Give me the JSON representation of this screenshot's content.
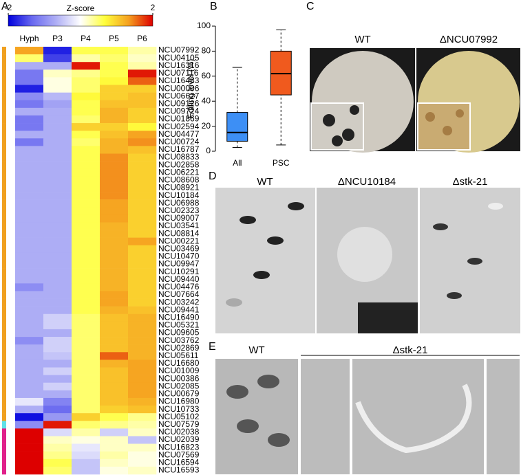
{
  "chart_data": [
    {
      "type": "heatmap",
      "colorbar_title": "Z-score",
      "zlim": [
        -2,
        2
      ],
      "colorbar_ticks": [
        -2,
        2
      ],
      "colormap": [
        "#0000dd",
        "#6a6af0",
        "#b0b0f5",
        "#ffffff",
        "#ffff3c",
        "#f5a020",
        "#dd0000"
      ],
      "categories": [
        "Hyph",
        "P3",
        "P4",
        "P5",
        "P6"
      ],
      "rows": [
        "NCU07992",
        "NCU04105",
        "NCU16316",
        "NCU07116",
        "NCU16483",
        "NCU00006",
        "NCU06627",
        "NCU09126",
        "NCU09724",
        "NCU01869",
        "NCU02594",
        "NCU04477",
        "NCU00724",
        "NCU16787",
        "NCU08833",
        "NCU02858",
        "NCU06221",
        "NCU08608",
        "NCU08921",
        "NCU10184",
        "NCU06988",
        "NCU02323",
        "NCU09007",
        "NCU03541",
        "NCU08814",
        "NCU00221",
        "NCU03469",
        "NCU10470",
        "NCU09947",
        "NCU10291",
        "NCU09440",
        "NCU04476",
        "NCU07664",
        "NCU03242",
        "NCU09441",
        "NCU16490",
        "NCU05321",
        "NCU09605",
        "NCU03762",
        "NCU02869",
        "NCU05611",
        "NCU16680",
        "NCU01009",
        "NCU00386",
        "NCU02085",
        "NCU00679",
        "NCU16980",
        "NCU10733",
        "NCU05102",
        "NCU07579",
        "NCU02038",
        "NCU02039",
        "NCU16823",
        "NCU07569",
        "NCU16594",
        "NCU16593"
      ],
      "highlighted_rows": [
        "NCU07992",
        "NCU10184",
        "NCU03242"
      ],
      "row_group_colors": [
        "#f0a020",
        "#f0a020",
        "#f0a020",
        "#f0a020",
        "#f0a020",
        "#f0a020",
        "#f0a020",
        "#f0a020",
        "#f0a020",
        "#f0a020",
        "#f0a020",
        "#f0a020",
        "#f0a020",
        "#f0a020",
        "#f0a020",
        "#f0a020",
        "#f0a020",
        "#f0a020",
        "#f0a020",
        "#f0a020",
        "#f0a020",
        "#f0a020",
        "#f0a020",
        "#f0a020",
        "#f0a020",
        "#f0a020",
        "#f0a020",
        "#f0a020",
        "#f0a020",
        "#f0a020",
        "#f0a020",
        "#f0a020",
        "#f0a020",
        "#f0a020",
        "#f0a020",
        "#f0a020",
        "#f0a020",
        "#f0a020",
        "#f0a020",
        "#f0a020",
        "#f0a020",
        "#f0a020",
        "#f0a020",
        "#f0a020",
        "#f0a020",
        "#f0a020",
        "#f0a020",
        "#f0a020",
        "#f0a020",
        "#60e0e8",
        "#e0208a",
        "#e0208a",
        "#e0208a",
        "#e0208a",
        "#e0208a",
        "#e0208a"
      ],
      "values": [
        [
          1.3,
          -1.8,
          0.6,
          0.6,
          0.3
        ],
        [
          0.5,
          -1.6,
          0.3,
          0.5,
          0.2
        ],
        [
          -0.7,
          -0.7,
          1.9,
          0.6,
          0.3
        ],
        [
          -1.2,
          0.2,
          0.4,
          0.6,
          1.9
        ],
        [
          -1.2,
          0.1,
          0.5,
          0.7,
          1.6
        ],
        [
          -1.8,
          0.1,
          0.5,
          1.0,
          1.0
        ],
        [
          -1.0,
          -0.6,
          0.7,
          1.0,
          1.1
        ],
        [
          -1.2,
          -0.8,
          0.6,
          1.1,
          1.1
        ],
        [
          -0.7,
          -0.7,
          0.6,
          1.2,
          1.0
        ],
        [
          -1.2,
          -0.7,
          0.5,
          1.2,
          1.0
        ],
        [
          -1.2,
          -0.7,
          1.0,
          1.0,
          0.7
        ],
        [
          -0.7,
          -0.7,
          0.6,
          1.1,
          1.3
        ],
        [
          -1.2,
          -0.7,
          0.5,
          1.2,
          1.4
        ],
        [
          -0.7,
          -0.7,
          0.6,
          1.2,
          1.1
        ],
        [
          -0.7,
          -0.7,
          0.6,
          1.4,
          1.0
        ],
        [
          -0.7,
          -0.7,
          0.6,
          1.4,
          1.0
        ],
        [
          -0.7,
          -0.7,
          0.6,
          1.4,
          1.0
        ],
        [
          -0.7,
          -0.7,
          0.6,
          1.4,
          1.0
        ],
        [
          -0.7,
          -0.7,
          0.6,
          1.4,
          1.0
        ],
        [
          -0.7,
          -0.7,
          0.6,
          1.4,
          1.0
        ],
        [
          -0.7,
          -0.7,
          0.6,
          1.3,
          1.0
        ],
        [
          -0.7,
          -0.7,
          0.6,
          1.3,
          1.0
        ],
        [
          -0.7,
          -0.7,
          0.6,
          1.3,
          1.0
        ],
        [
          -0.7,
          -0.7,
          0.6,
          1.2,
          1.0
        ],
        [
          -0.7,
          -0.7,
          0.6,
          1.2,
          1.0
        ],
        [
          -0.7,
          -0.7,
          0.6,
          1.2,
          1.3
        ],
        [
          -0.7,
          -0.7,
          0.6,
          1.2,
          1.0
        ],
        [
          -0.7,
          -0.7,
          0.6,
          1.2,
          1.0
        ],
        [
          -0.7,
          -0.7,
          0.6,
          1.2,
          1.0
        ],
        [
          -0.7,
          -0.7,
          0.6,
          1.2,
          1.0
        ],
        [
          -0.7,
          -0.7,
          0.6,
          1.2,
          1.0
        ],
        [
          -1.0,
          -0.7,
          0.6,
          1.2,
          1.0
        ],
        [
          -0.7,
          -0.7,
          0.6,
          1.3,
          1.0
        ],
        [
          -0.7,
          -0.7,
          0.6,
          1.3,
          1.0
        ],
        [
          -0.7,
          -0.7,
          0.6,
          1.2,
          1.1
        ],
        [
          -0.7,
          -0.4,
          0.5,
          1.1,
          1.2
        ],
        [
          -0.7,
          -0.4,
          0.5,
          1.1,
          1.2
        ],
        [
          -0.7,
          -0.7,
          0.5,
          1.1,
          1.2
        ],
        [
          -1.0,
          -0.4,
          0.5,
          1.1,
          1.2
        ],
        [
          -0.7,
          -0.4,
          0.5,
          1.1,
          1.2
        ],
        [
          -0.7,
          -0.5,
          0.5,
          1.6,
          1.2
        ],
        [
          -0.7,
          -0.7,
          0.5,
          1.2,
          1.3
        ],
        [
          -0.7,
          -0.4,
          0.5,
          1.1,
          1.3
        ],
        [
          -0.7,
          -0.7,
          0.5,
          1.1,
          1.3
        ],
        [
          -0.7,
          -0.4,
          0.5,
          1.1,
          1.3
        ],
        [
          -0.7,
          -0.7,
          0.5,
          1.1,
          1.3
        ],
        [
          -0.2,
          -1.1,
          0.5,
          1.1,
          1.2
        ],
        [
          -0.7,
          -1.3,
          0.5,
          1.0,
          1.1
        ],
        [
          -1.9,
          -0.9,
          1.0,
          0.6,
          0.4
        ],
        [
          -1.0,
          1.9,
          0.5,
          0.4,
          0.3
        ],
        [
          2,
          -0.3,
          0.3,
          -0.4,
          0.2
        ],
        [
          2,
          0.2,
          0.1,
          0.2,
          -0.5
        ],
        [
          2,
          0.3,
          -0.2,
          0.2,
          0.2
        ],
        [
          2,
          0.4,
          -0.3,
          0.3,
          0.1
        ],
        [
          2,
          0.6,
          -0.5,
          0.2,
          0.1
        ],
        [
          2,
          0.5,
          -0.5,
          0.1,
          0.2
        ]
      ]
    },
    {
      "type": "box",
      "ylabel": "Editing level (%)",
      "categories": [
        "All",
        "PSC"
      ],
      "colors": [
        "#3d8ff5",
        "#f05a1e"
      ],
      "stats": [
        {
          "min": 3,
          "q1": 8,
          "median": 15,
          "q3": 31,
          "max": 67
        },
        {
          "min": 5,
          "q1": 45,
          "median": 62,
          "q3": 80,
          "max": 97
        }
      ],
      "ylim": [
        0,
        100
      ],
      "yticks": [
        0,
        20,
        40,
        60,
        80,
        100
      ]
    }
  ],
  "panels": {
    "A": "A",
    "B": "B",
    "C": "C",
    "D": "D",
    "E": "E"
  },
  "photos": {
    "c_titles": [
      "WT",
      "ΔNCU07992"
    ],
    "d_titles": [
      "WT",
      "ΔNCU10184",
      "Δstk-21"
    ],
    "e_titles": [
      "WT",
      "Δstk-21"
    ]
  }
}
